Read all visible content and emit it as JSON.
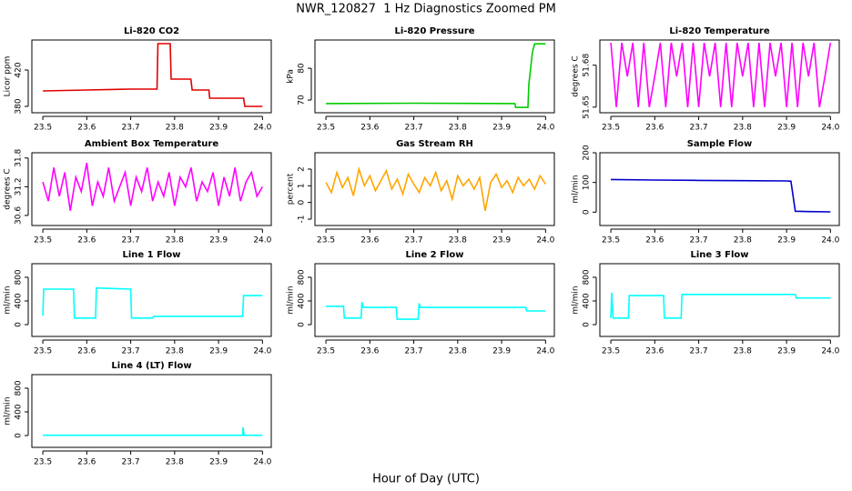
{
  "title": "NWR_120827  1 Hz Diagnostics Zoomed PM",
  "xlabel": "Hour of Day (UTC)",
  "chart_data": [
    {
      "type": "line",
      "title": "Li-820 CO2",
      "ylabel": "Licor ppm",
      "color": "#e00000",
      "xlim": [
        23.475,
        24.02
      ],
      "xticks": [
        23.5,
        23.6,
        23.7,
        23.8,
        23.9,
        {
          "value": 24,
          "label": "24.0"
        }
      ],
      "ylim": [
        373,
        453
      ],
      "yticks": [
        380,
        420
      ],
      "x": [
        23.5,
        23.6,
        23.7,
        23.76,
        23.762,
        23.79,
        23.792,
        23.837,
        23.84,
        23.878,
        23.88,
        23.957,
        23.96,
        24.0
      ],
      "values": [
        397,
        398,
        399,
        399,
        449,
        449,
        410,
        410,
        398,
        398,
        389,
        389,
        380,
        380
      ]
    },
    {
      "type": "line",
      "title": "Li-820 Pressure",
      "ylabel": "kPa",
      "color": "#00cc00",
      "xlim": [
        23.475,
        24.02
      ],
      "xticks": [
        23.5,
        23.6,
        23.7,
        23.8,
        23.9,
        {
          "value": 24,
          "label": "24.0"
        }
      ],
      "ylim": [
        66,
        88.9
      ],
      "yticks": [
        70,
        80
      ],
      "x": [
        23.5,
        23.7,
        23.93,
        23.932,
        23.96,
        23.962,
        23.97,
        23.975,
        24.0
      ],
      "values": [
        68.9,
        69,
        68.9,
        67.7,
        67.7,
        75,
        85,
        87.7,
        87.7
      ]
    },
    {
      "type": "line",
      "title": "Li-820 Temperature",
      "ylabel": "degrees C",
      "color": "#ff00ff",
      "xlim": [
        23.475,
        24.02
      ],
      "xticks": [
        23.5,
        23.6,
        23.7,
        23.8,
        23.9,
        {
          "value": 24,
          "label": "24.0"
        }
      ],
      "ylim": [
        51.646,
        51.698
      ],
      "yticks": [
        51.65,
        51.68
      ],
      "x": [
        23.5,
        23.5125,
        23.525,
        23.5375,
        23.55,
        23.5625,
        23.575,
        23.5875,
        23.6,
        23.6125,
        23.625,
        23.6375,
        23.65,
        23.6625,
        23.675,
        23.6875,
        23.7,
        23.7125,
        23.725,
        23.7375,
        23.75,
        23.7625,
        23.775,
        23.7875,
        23.8,
        23.8125,
        23.825,
        23.8375,
        23.85,
        23.8625,
        23.875,
        23.8875,
        23.9,
        23.9125,
        23.925,
        23.9375,
        23.95,
        23.9625,
        23.975,
        23.9875,
        24.0
      ],
      "values": [
        51.696,
        51.65,
        51.696,
        51.672,
        51.696,
        51.65,
        51.696,
        51.65,
        51.672,
        51.696,
        51.65,
        51.696,
        51.672,
        51.696,
        51.65,
        51.696,
        51.65,
        51.696,
        51.672,
        51.696,
        51.65,
        51.696,
        51.65,
        51.696,
        51.672,
        51.696,
        51.65,
        51.696,
        51.65,
        51.696,
        51.672,
        51.696,
        51.65,
        51.696,
        51.65,
        51.696,
        51.672,
        51.696,
        51.65,
        51.672,
        51.696
      ]
    },
    {
      "type": "line",
      "title": "Ambient Box Temperature",
      "ylabel": "degrees C",
      "color": "#ff00ff",
      "xlim": [
        23.475,
        24.02
      ],
      "xticks": [
        23.5,
        23.6,
        23.7,
        23.8,
        23.9,
        {
          "value": 24,
          "label": "24.0"
        }
      ],
      "ylim": [
        30.39,
        31.91
      ],
      "yticks": [
        30.6,
        31.2,
        31.8
      ],
      "x": [
        23.5,
        23.5125,
        23.525,
        23.5375,
        23.55,
        23.5625,
        23.575,
        23.5875,
        23.6,
        23.6125,
        23.625,
        23.6375,
        23.65,
        23.6625,
        23.675,
        23.6875,
        23.7,
        23.7125,
        23.725,
        23.7375,
        23.75,
        23.7625,
        23.775,
        23.7875,
        23.8,
        23.8125,
        23.825,
        23.8375,
        23.85,
        23.8625,
        23.875,
        23.8875,
        23.9,
        23.9125,
        23.925,
        23.9375,
        23.95,
        23.9625,
        23.975,
        23.9875,
        24.0
      ],
      "values": [
        31.3,
        30.9,
        31.6,
        31.0,
        31.5,
        30.7,
        31.4,
        31.1,
        31.7,
        30.8,
        31.3,
        31.0,
        31.6,
        30.9,
        31.2,
        31.5,
        30.8,
        31.4,
        31.1,
        31.6,
        30.9,
        31.3,
        31.0,
        31.5,
        30.8,
        31.4,
        31.2,
        31.6,
        30.9,
        31.3,
        31.1,
        31.5,
        30.8,
        31.4,
        31.0,
        31.6,
        30.9,
        31.3,
        31.5,
        31.0,
        31.2
      ]
    },
    {
      "type": "line",
      "title": "Gas Stream RH",
      "ylabel": "percent",
      "color": "#ffa500",
      "xlim": [
        23.475,
        24.02
      ],
      "xticks": [
        23.5,
        23.6,
        23.7,
        23.8,
        23.9,
        {
          "value": 24,
          "label": "24.0"
        }
      ],
      "ylim": [
        -1.38,
        2.98
      ],
      "yticks": [
        -1,
        0,
        1,
        2
      ],
      "x": [
        23.5,
        23.5125,
        23.525,
        23.5375,
        23.55,
        23.5625,
        23.575,
        23.5875,
        23.6,
        23.6125,
        23.625,
        23.6375,
        23.65,
        23.6625,
        23.675,
        23.6875,
        23.7,
        23.7125,
        23.725,
        23.7375,
        23.75,
        23.7625,
        23.775,
        23.7875,
        23.8,
        23.8125,
        23.825,
        23.8375,
        23.85,
        23.8625,
        23.875,
        23.8875,
        23.9,
        23.9125,
        23.925,
        23.9375,
        23.95,
        23.9625,
        23.975,
        23.9875,
        24.0
      ],
      "values": [
        1.2,
        0.6,
        1.8,
        0.9,
        1.5,
        0.4,
        2.0,
        1.0,
        1.6,
        0.7,
        1.3,
        1.9,
        0.8,
        1.4,
        0.5,
        1.7,
        1.1,
        0.6,
        1.5,
        1.0,
        1.8,
        0.7,
        1.3,
        0.2,
        1.6,
        1.0,
        1.4,
        0.8,
        1.5,
        -0.5,
        1.2,
        1.7,
        0.9,
        1.3,
        0.6,
        1.5,
        1.0,
        1.4,
        0.8,
        1.6,
        1.1
      ]
    },
    {
      "type": "line",
      "title": "Sample Flow",
      "ylabel": "ml/min",
      "color": "#0000cc",
      "xlim": [
        23.475,
        24.02
      ],
      "xticks": [
        23.5,
        23.6,
        23.7,
        23.8,
        23.9,
        {
          "value": 24,
          "label": "24.0"
        }
      ],
      "ylim": [
        -45,
        200
      ],
      "yticks": [
        0,
        100,
        200
      ],
      "x": [
        23.5,
        23.6,
        23.7,
        23.8,
        23.9,
        23.91,
        23.92,
        23.95,
        24.0
      ],
      "values": [
        110,
        108,
        107,
        106,
        105,
        104,
        3,
        2,
        1
      ]
    },
    {
      "type": "line",
      "title": "Line 1 Flow",
      "ylabel": "ml/min",
      "color": "#00ffff",
      "xlim": [
        23.475,
        24.02
      ],
      "xticks": [
        23.5,
        23.6,
        23.7,
        23.8,
        23.9,
        {
          "value": 24,
          "label": "24.0"
        }
      ],
      "ylim": [
        -200,
        1030
      ],
      "yticks": [
        0,
        400,
        800
      ],
      "x": [
        23.5,
        23.502,
        23.57,
        23.572,
        23.62,
        23.622,
        23.7,
        23.702,
        23.75,
        23.752,
        23.955,
        23.957,
        24.0
      ],
      "values": [
        150,
        600,
        600,
        110,
        110,
        620,
        600,
        110,
        110,
        140,
        140,
        490,
        490
      ]
    },
    {
      "type": "line",
      "title": "Line 2 Flow",
      "ylabel": "ml/min",
      "color": "#00ffff",
      "xlim": [
        23.475,
        24.02
      ],
      "xticks": [
        23.5,
        23.6,
        23.7,
        23.8,
        23.9,
        {
          "value": 24,
          "label": "24.0"
        }
      ],
      "ylim": [
        -200,
        1030
      ],
      "yticks": [
        0,
        400,
        800
      ],
      "x": [
        23.5,
        23.54,
        23.542,
        23.58,
        23.582,
        23.585,
        23.66,
        23.662,
        23.71,
        23.712,
        23.715,
        23.955,
        23.957,
        24.0
      ],
      "values": [
        310,
        310,
        110,
        110,
        380,
        290,
        290,
        90,
        90,
        360,
        290,
        290,
        230,
        230
      ]
    },
    {
      "type": "line",
      "title": "Line 3 Flow",
      "ylabel": "ml/min",
      "color": "#00ffff",
      "xlim": [
        23.475,
        24.02
      ],
      "xticks": [
        23.5,
        23.6,
        23.7,
        23.8,
        23.9,
        {
          "value": 24,
          "label": "24.0"
        }
      ],
      "ylim": [
        -200,
        1030
      ],
      "yticks": [
        0,
        400,
        800
      ],
      "x": [
        23.5,
        23.502,
        23.505,
        23.54,
        23.542,
        23.62,
        23.622,
        23.66,
        23.662,
        23.92,
        23.922,
        24.0
      ],
      "values": [
        110,
        540,
        110,
        110,
        490,
        490,
        110,
        110,
        510,
        510,
        450,
        450
      ]
    },
    {
      "type": "line",
      "title": "Line 4 (LT) Flow",
      "ylabel": "ml/min",
      "color": "#00ffff",
      "xlim": [
        23.475,
        24.02
      ],
      "xticks": [
        23.5,
        23.6,
        23.7,
        23.8,
        23.9,
        {
          "value": 24,
          "label": "24.0"
        }
      ],
      "ylim": [
        -200,
        1030
      ],
      "yticks": [
        0,
        400,
        800
      ],
      "x": [
        23.5,
        23.955,
        23.956,
        23.958,
        24.0
      ],
      "values": [
        5,
        5,
        140,
        5,
        5
      ]
    }
  ]
}
